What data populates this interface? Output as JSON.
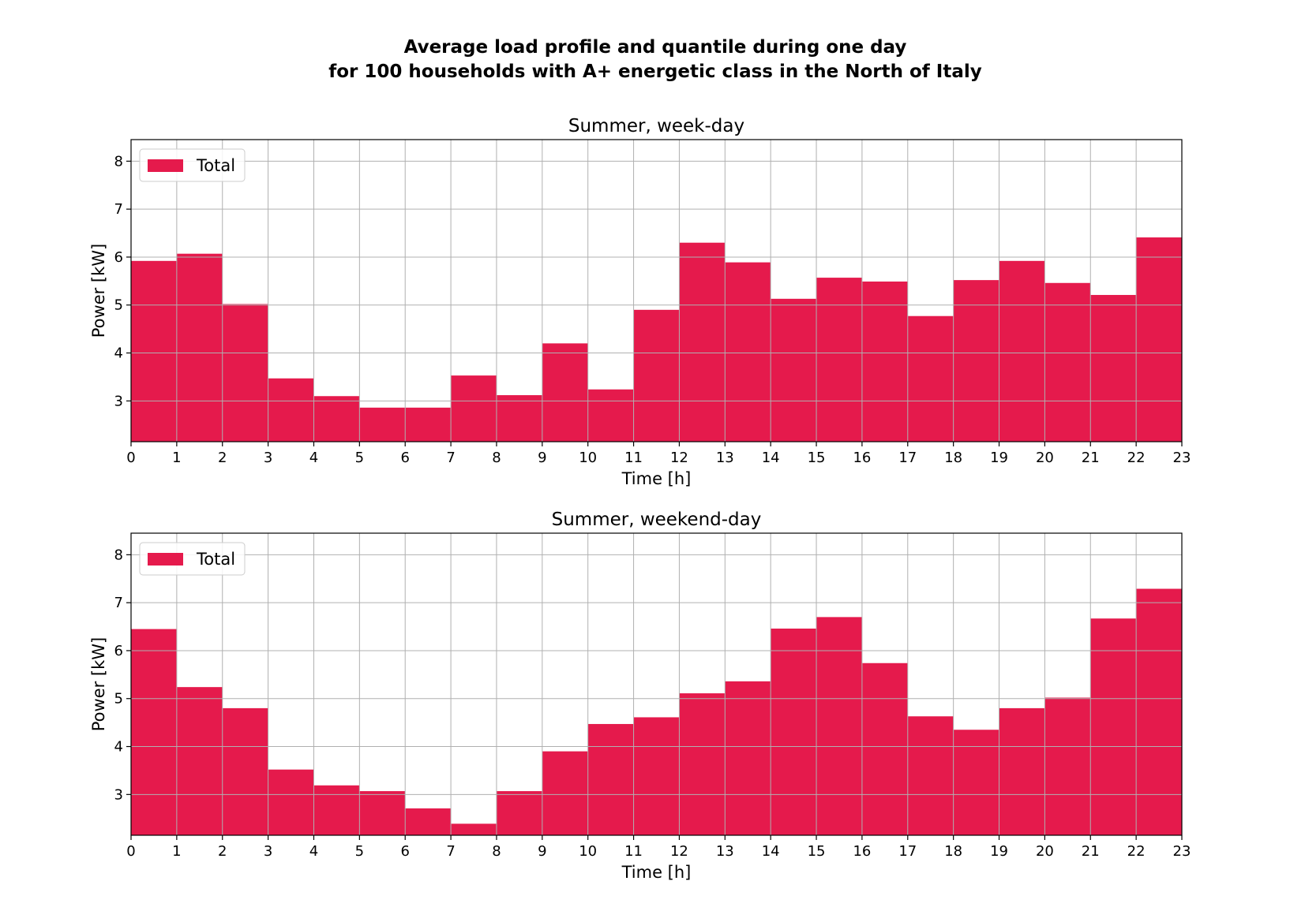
{
  "figure": {
    "title_line1": "Average load profile and quantile during one day",
    "title_line2": "for 100 households with A+ energetic class in the North of Italy"
  },
  "chart_data": [
    {
      "type": "bar",
      "title": "Summer, week-day",
      "xlabel": "Time [h]",
      "ylabel": "Power [kW]",
      "xlim": [
        0,
        23
      ],
      "ylim": [
        2.15,
        8.45
      ],
      "xticks": [
        0,
        1,
        2,
        3,
        4,
        5,
        6,
        7,
        8,
        9,
        10,
        11,
        12,
        13,
        14,
        15,
        16,
        17,
        18,
        19,
        20,
        21,
        22,
        23
      ],
      "yticks": [
        3,
        4,
        5,
        6,
        7,
        8
      ],
      "grid": true,
      "legend_position": "upper-left",
      "bar_color": "#e51a4c",
      "series": [
        {
          "name": "Total",
          "x": [
            0,
            1,
            2,
            3,
            4,
            5,
            6,
            7,
            8,
            9,
            10,
            11,
            12,
            13,
            14,
            15,
            16,
            17,
            18,
            19,
            20,
            21,
            22
          ],
          "values": [
            5.92,
            6.07,
            5.02,
            3.47,
            3.1,
            2.86,
            2.86,
            3.53,
            3.12,
            4.2,
            3.24,
            4.9,
            6.3,
            5.89,
            5.13,
            5.57,
            5.49,
            4.77,
            5.52,
            5.92,
            5.46,
            5.21,
            6.41
          ]
        }
      ]
    },
    {
      "type": "bar",
      "title": "Summer, weekend-day",
      "xlabel": "Time [h]",
      "ylabel": "Power [kW]",
      "xlim": [
        0,
        23
      ],
      "ylim": [
        2.15,
        8.45
      ],
      "xticks": [
        0,
        1,
        2,
        3,
        4,
        5,
        6,
        7,
        8,
        9,
        10,
        11,
        12,
        13,
        14,
        15,
        16,
        17,
        18,
        19,
        20,
        21,
        22,
        23
      ],
      "yticks": [
        3,
        4,
        5,
        6,
        7,
        8
      ],
      "grid": true,
      "legend_position": "upper-left",
      "bar_color": "#e51a4c",
      "series": [
        {
          "name": "Total",
          "x": [
            0,
            1,
            2,
            3,
            4,
            5,
            6,
            7,
            8,
            9,
            10,
            11,
            12,
            13,
            14,
            15,
            16,
            17,
            18,
            19,
            20,
            21,
            22
          ],
          "values": [
            6.45,
            5.24,
            4.8,
            3.52,
            3.19,
            3.07,
            2.71,
            2.39,
            3.07,
            3.9,
            4.47,
            4.61,
            5.11,
            5.36,
            6.46,
            6.7,
            5.74,
            4.63,
            4.35,
            4.8,
            5.02,
            6.67,
            7.29
          ]
        }
      ]
    }
  ]
}
